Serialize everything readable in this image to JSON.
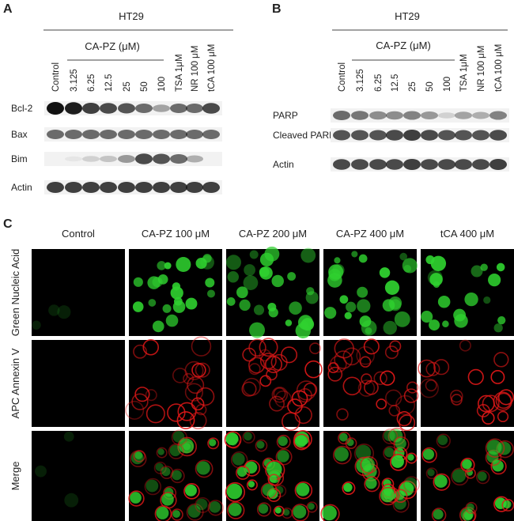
{
  "panel_a": {
    "label": "A",
    "cell_line": "HT29",
    "group_label": "CA-PZ (μM)",
    "lanes": [
      "Control",
      "3.125",
      "6.25",
      "12.5",
      "25",
      "50",
      "100",
      "TSA 1μM",
      "NR 100 μM",
      "tCA 100 μM"
    ],
    "rows": [
      "Bcl-2",
      "Bax",
      "Bim",
      "Actin"
    ]
  },
  "panel_b": {
    "label": "B",
    "cell_line": "HT29",
    "group_label": "CA-PZ (μM)",
    "lanes": [
      "Control",
      "3.125",
      "6.25",
      "12.5",
      "25",
      "50",
      "100",
      "TSA 1μM",
      "NR 100 μM",
      "tCA 100 μM"
    ],
    "rows": [
      "PARP",
      "Cleaved PARP",
      "Actin"
    ]
  },
  "panel_c": {
    "label": "C",
    "columns": [
      "Control",
      "CA-PZ 100 μM",
      "CA-PZ 200 μM",
      "CA-PZ 400 μM",
      "tCA 400 μM"
    ],
    "rows": [
      "Green Nucleic Acid",
      "APC Annexin V",
      "Merge"
    ]
  }
}
